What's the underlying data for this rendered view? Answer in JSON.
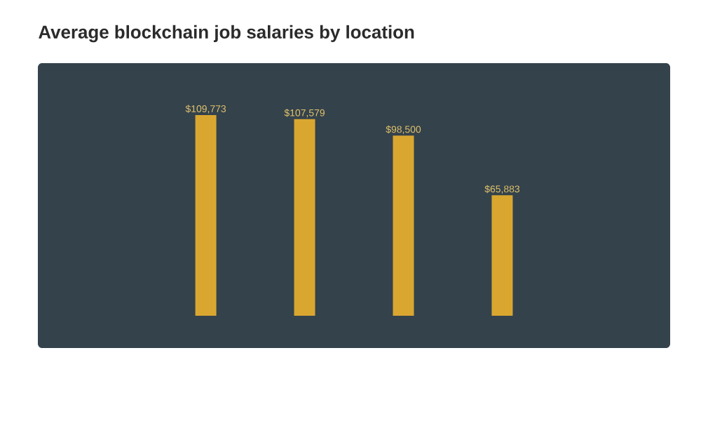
{
  "chart_data": {
    "type": "bar",
    "title": "Average blockchain job salaries by location",
    "categories": [
      null,
      null,
      null,
      null
    ],
    "values": [
      109773,
      107579,
      98500,
      65883
    ],
    "value_labels": [
      "$109,773",
      "$107,579",
      "$98,500",
      "$65,883"
    ],
    "color": "#d9a730"
  }
}
